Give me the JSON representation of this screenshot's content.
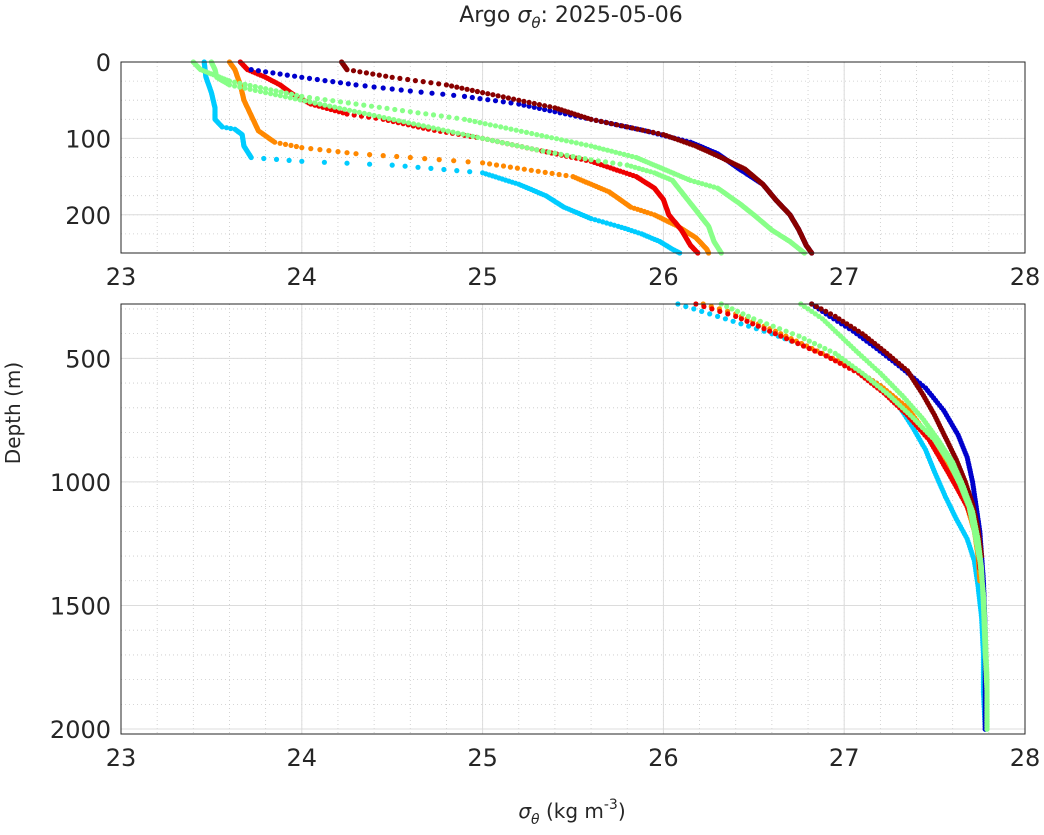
{
  "title": {
    "prefix": "Argo ",
    "symbol": "σ",
    "symbol_sub": "θ",
    "date": ": 2025-05-06"
  },
  "chart_data": [
    {
      "type": "scatter",
      "panel": "upper",
      "xlim": [
        23,
        28
      ],
      "ylim": [
        0,
        250
      ],
      "y_reversed": true,
      "xticks": [
        23,
        24,
        25,
        26,
        27,
        28
      ],
      "yticks": [
        0,
        100,
        200
      ],
      "grid": true,
      "minor_grid": true,
      "series": [
        {
          "color": "#00ccff",
          "points": [
            [
              23.46,
              0
            ],
            [
              23.47,
              20
            ],
            [
              23.5,
              40
            ],
            [
              23.52,
              60
            ],
            [
              23.52,
              75
            ],
            [
              23.56,
              85
            ],
            [
              23.63,
              88
            ],
            [
              23.67,
              95
            ],
            [
              23.68,
              110
            ],
            [
              23.72,
              125
            ],
            [
              24.0,
              130
            ],
            [
              24.5,
              135
            ],
            [
              25.0,
              145
            ],
            [
              25.2,
              160
            ],
            [
              25.35,
              175
            ],
            [
              25.45,
              190
            ],
            [
              25.6,
              205
            ],
            [
              25.75,
              215
            ],
            [
              25.88,
              225
            ],
            [
              25.98,
              235
            ],
            [
              26.05,
              245
            ],
            [
              26.09,
              250
            ]
          ]
        },
        {
          "color": "#ff8800",
          "points": [
            [
              23.6,
              0
            ],
            [
              23.63,
              10
            ],
            [
              23.66,
              30
            ],
            [
              23.68,
              50
            ],
            [
              23.72,
              70
            ],
            [
              23.76,
              90
            ],
            [
              23.85,
              105
            ],
            [
              24.0,
              112
            ],
            [
              24.3,
              120
            ],
            [
              24.6,
              125
            ],
            [
              25.0,
              132
            ],
            [
              25.5,
              150
            ],
            [
              25.7,
              170
            ],
            [
              25.82,
              190
            ],
            [
              25.95,
              200
            ],
            [
              26.08,
              215
            ],
            [
              26.18,
              230
            ],
            [
              26.24,
              245
            ],
            [
              26.25,
              250
            ]
          ]
        },
        {
          "color": "#ee0000",
          "points": [
            [
              23.66,
              0
            ],
            [
              23.7,
              10
            ],
            [
              23.8,
              20
            ],
            [
              23.88,
              30
            ],
            [
              23.95,
              42
            ],
            [
              24.05,
              55
            ],
            [
              24.25,
              68
            ],
            [
              24.45,
              75
            ],
            [
              24.7,
              88
            ],
            [
              25.0,
              100
            ],
            [
              25.3,
              115
            ],
            [
              25.6,
              130
            ],
            [
              25.85,
              150
            ],
            [
              25.95,
              165
            ],
            [
              26.0,
              180
            ],
            [
              26.03,
              200
            ],
            [
              26.1,
              220
            ],
            [
              26.15,
              240
            ],
            [
              26.19,
              250
            ]
          ]
        },
        {
          "color": "#0000cc",
          "points": [
            [
              23.72,
              10
            ],
            [
              24.0,
              20
            ],
            [
              24.3,
              30
            ],
            [
              24.6,
              38
            ],
            [
              24.9,
              45
            ],
            [
              25.2,
              55
            ],
            [
              25.4,
              65
            ],
            [
              25.6,
              75
            ],
            [
              25.9,
              90
            ],
            [
              26.15,
              105
            ],
            [
              26.3,
              120
            ],
            [
              26.42,
              140
            ],
            [
              26.55,
              160
            ],
            [
              26.62,
              180
            ],
            [
              26.7,
              200
            ],
            [
              26.75,
              220
            ],
            [
              26.79,
              240
            ],
            [
              26.82,
              250
            ]
          ]
        },
        {
          "color": "#880000",
          "points": [
            [
              24.22,
              0
            ],
            [
              24.25,
              10
            ],
            [
              24.5,
              20
            ],
            [
              24.8,
              30
            ],
            [
              25.0,
              40
            ],
            [
              25.2,
              50
            ],
            [
              25.4,
              60
            ],
            [
              25.6,
              75
            ],
            [
              25.8,
              85
            ],
            [
              26.0,
              95
            ],
            [
              26.18,
              110
            ],
            [
              26.32,
              125
            ],
            [
              26.45,
              140
            ],
            [
              26.55,
              160
            ],
            [
              26.62,
              180
            ],
            [
              26.7,
              200
            ],
            [
              26.75,
              220
            ],
            [
              26.79,
              240
            ],
            [
              26.82,
              250
            ]
          ]
        },
        {
          "color": "#88ff88",
          "points": [
            [
              23.4,
              0
            ],
            [
              23.44,
              10
            ],
            [
              23.6,
              25
            ],
            [
              23.8,
              35
            ],
            [
              24.0,
              45
            ],
            [
              24.3,
              55
            ],
            [
              24.6,
              65
            ],
            [
              24.9,
              75
            ],
            [
              25.1,
              85
            ],
            [
              25.3,
              95
            ],
            [
              25.6,
              110
            ],
            [
              25.85,
              125
            ],
            [
              26.0,
              140
            ],
            [
              26.15,
              155
            ],
            [
              26.3,
              165
            ],
            [
              26.42,
              185
            ],
            [
              26.5,
              200
            ],
            [
              26.6,
              220
            ],
            [
              26.7,
              235
            ],
            [
              26.78,
              250
            ]
          ]
        },
        {
          "color": "#88ff88",
          "points": [
            [
              23.5,
              0
            ],
            [
              23.52,
              10
            ],
            [
              23.53,
              20
            ],
            [
              23.6,
              30
            ],
            [
              23.8,
              40
            ],
            [
              24.1,
              55
            ],
            [
              24.4,
              70
            ],
            [
              24.7,
              85
            ],
            [
              25.0,
              100
            ],
            [
              25.3,
              115
            ],
            [
              25.6,
              128
            ],
            [
              25.8,
              135
            ],
            [
              25.95,
              145
            ],
            [
              26.05,
              155
            ],
            [
              26.1,
              170
            ],
            [
              26.15,
              185
            ],
            [
              26.2,
              200
            ],
            [
              26.25,
              215
            ],
            [
              26.28,
              235
            ],
            [
              26.32,
              250
            ]
          ]
        }
      ]
    },
    {
      "type": "scatter",
      "panel": "lower",
      "xlim": [
        23,
        28
      ],
      "ylim": [
        280,
        2020
      ],
      "y_reversed": true,
      "xticks": [
        23,
        24,
        25,
        26,
        27,
        28
      ],
      "yticks": [
        500,
        1000,
        1500,
        2000
      ],
      "ylabel": "Depth (m)",
      "xlabel_symbol": "σ",
      "xlabel_sub": "θ",
      "xlabel_unit": " (kg m",
      "xlabel_exp": "-3",
      "xlabel_close": ")",
      "grid": true,
      "minor_grid": true,
      "series": [
        {
          "color": "#00ccff",
          "points": [
            [
              26.08,
              280
            ],
            [
              26.3,
              330
            ],
            [
              26.6,
              400
            ],
            [
              26.85,
              470
            ],
            [
              27.05,
              540
            ],
            [
              27.2,
              610
            ],
            [
              27.3,
              690
            ],
            [
              27.38,
              780
            ],
            [
              27.45,
              870
            ],
            [
              27.5,
              960
            ],
            [
              27.56,
              1060
            ],
            [
              27.62,
              1150
            ],
            [
              27.68,
              1230
            ],
            [
              27.72,
              1320
            ],
            [
              27.74,
              1420
            ],
            [
              27.76,
              1550
            ],
            [
              27.77,
              1700
            ],
            [
              27.77,
              1850
            ],
            [
              27.78,
              2000
            ]
          ]
        },
        {
          "color": "#ff8800",
          "points": [
            [
              26.22,
              280
            ],
            [
              26.4,
              320
            ],
            [
              26.62,
              390
            ],
            [
              26.85,
              470
            ],
            [
              27.05,
              540
            ],
            [
              27.2,
              610
            ],
            [
              27.35,
              700
            ],
            [
              27.45,
              800
            ],
            [
              27.55,
              900
            ],
            [
              27.62,
              1000
            ],
            [
              27.68,
              1100
            ],
            [
              27.72,
              1200
            ],
            [
              27.74,
              1300
            ],
            [
              27.75,
              1400
            ]
          ]
        },
        {
          "color": "#ee0000",
          "points": [
            [
              26.18,
              280
            ],
            [
              26.4,
              330
            ],
            [
              26.65,
              410
            ],
            [
              26.9,
              490
            ],
            [
              27.08,
              560
            ],
            [
              27.22,
              640
            ],
            [
              27.35,
              730
            ],
            [
              27.47,
              830
            ],
            [
              27.55,
              930
            ],
            [
              27.62,
              1020
            ],
            [
              27.68,
              1100
            ],
            [
              27.72,
              1180
            ],
            [
              27.74,
              1260
            ],
            [
              27.75,
              1350
            ]
          ]
        },
        {
          "color": "#0000cc",
          "points": [
            [
              26.82,
              280
            ],
            [
              26.92,
              330
            ],
            [
              27.05,
              390
            ],
            [
              27.18,
              460
            ],
            [
              27.32,
              540
            ],
            [
              27.45,
              620
            ],
            [
              27.55,
              710
            ],
            [
              27.63,
              810
            ],
            [
              27.68,
              900
            ],
            [
              27.71,
              1000
            ],
            [
              27.73,
              1100
            ],
            [
              27.75,
              1200
            ],
            [
              27.76,
              1300
            ],
            [
              27.77,
              1400
            ],
            [
              27.78,
              1600
            ],
            [
              27.78,
              1800
            ],
            [
              27.78,
              2000
            ]
          ]
        },
        {
          "color": "#880000",
          "points": [
            [
              26.82,
              280
            ],
            [
              26.95,
              330
            ],
            [
              27.1,
              400
            ],
            [
              27.22,
              470
            ],
            [
              27.35,
              550
            ],
            [
              27.43,
              640
            ],
            [
              27.5,
              730
            ],
            [
              27.56,
              820
            ],
            [
              27.62,
              910
            ],
            [
              27.67,
              1000
            ],
            [
              27.71,
              1090
            ],
            [
              27.74,
              1190
            ],
            [
              27.76,
              1300
            ]
          ]
        },
        {
          "color": "#88ff88",
          "points": [
            [
              26.76,
              280
            ],
            [
              26.88,
              340
            ],
            [
              26.98,
              410
            ],
            [
              27.08,
              480
            ],
            [
              27.2,
              560
            ],
            [
              27.32,
              650
            ],
            [
              27.43,
              740
            ],
            [
              27.52,
              830
            ],
            [
              27.6,
              920
            ],
            [
              27.66,
              1020
            ],
            [
              27.71,
              1120
            ],
            [
              27.74,
              1230
            ],
            [
              27.76,
              1350
            ],
            [
              27.77,
              1500
            ],
            [
              27.78,
              1700
            ],
            [
              27.79,
              1850
            ],
            [
              27.79,
              2000
            ]
          ]
        },
        {
          "color": "#88ff88",
          "points": [
            [
              26.32,
              280
            ],
            [
              26.5,
              340
            ],
            [
              26.75,
              410
            ],
            [
              26.95,
              480
            ],
            [
              27.1,
              560
            ],
            [
              27.25,
              650
            ],
            [
              27.38,
              740
            ],
            [
              27.5,
              830
            ],
            [
              27.58,
              920
            ],
            [
              27.64,
              1010
            ],
            [
              27.69,
              1100
            ],
            [
              27.72,
              1200
            ],
            [
              27.75,
              1320
            ],
            [
              27.77,
              1450
            ],
            [
              27.78,
              1600
            ],
            [
              27.79,
              1800
            ],
            [
              27.79,
              2000
            ]
          ]
        }
      ]
    }
  ]
}
